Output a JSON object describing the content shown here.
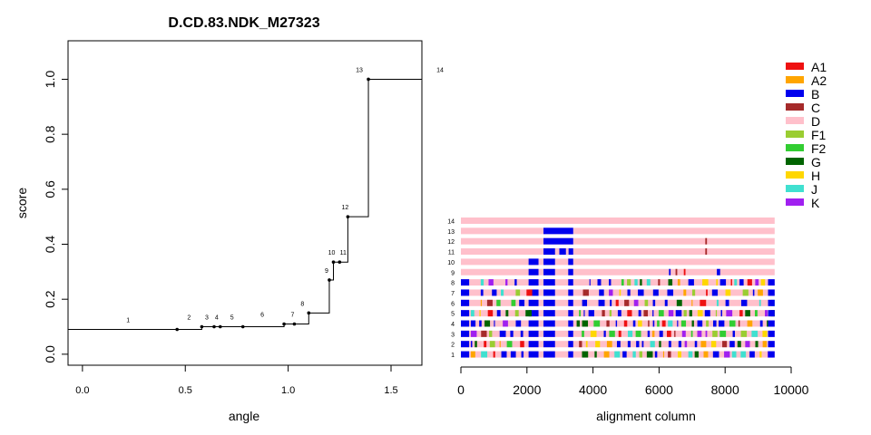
{
  "chart_data": [
    {
      "type": "line",
      "title": "D.CD.83.NDK_M27323",
      "xlabel": "angle",
      "ylabel": "score",
      "xlim": [
        -0.07,
        1.65
      ],
      "ylim": [
        -0.04,
        1.14
      ],
      "xticks": [
        "0.0",
        "0.5",
        "1.0",
        "1.5"
      ],
      "yticks": [
        "0.0",
        "0.2",
        "0.4",
        "0.6",
        "0.8",
        "1.0"
      ],
      "step_start": {
        "x": -0.07,
        "y": 0.09
      },
      "step_end_x": 1.65,
      "points": [
        {
          "label": "1",
          "x": 0.46,
          "y": 0.09
        },
        {
          "label": "2",
          "x": 0.58,
          "y": 0.1
        },
        {
          "label": "3",
          "x": 0.64,
          "y": 0.1
        },
        {
          "label": "4",
          "x": 0.67,
          "y": 0.1
        },
        {
          "label": "5",
          "x": 0.78,
          "y": 0.1
        },
        {
          "label": "6",
          "x": 0.98,
          "y": 0.11
        },
        {
          "label": "7",
          "x": 1.03,
          "y": 0.11
        },
        {
          "label": "8",
          "x": 1.1,
          "y": 0.15
        },
        {
          "label": "9",
          "x": 1.2,
          "y": 0.27
        },
        {
          "label": "10",
          "x": 1.22,
          "y": 0.335
        },
        {
          "label": "11",
          "x": 1.25,
          "y": 0.335
        },
        {
          "label": "12",
          "x": 1.29,
          "y": 0.5
        },
        {
          "label": "13",
          "x": 1.39,
          "y": 1.0
        },
        {
          "label": "14",
          "x": 1.65,
          "y": 1.0
        }
      ]
    },
    {
      "type": "heatmap",
      "xlabel": "alignment column",
      "xlim": [
        0,
        10000
      ],
      "xticks": [
        "0",
        "2000",
        "4000",
        "6000",
        "8000",
        "10000"
      ],
      "row_labels": [
        "1",
        "2",
        "3",
        "4",
        "5",
        "6",
        "7",
        "8",
        "9",
        "10",
        "11",
        "12",
        "13",
        "14"
      ],
      "alignment_length": 9500,
      "base_color": "#FFC0CB",
      "legend": [
        {
          "label": "A1",
          "color": "#EE1111"
        },
        {
          "label": "A2",
          "color": "#FFA500"
        },
        {
          "label": "B",
          "color": "#0000EE"
        },
        {
          "label": "C",
          "color": "#A52A2A"
        },
        {
          "label": "D",
          "color": "#FFC0CB"
        },
        {
          "label": "F1",
          "color": "#9ACD32"
        },
        {
          "label": "F2",
          "color": "#32CD32"
        },
        {
          "label": "G",
          "color": "#006400"
        },
        {
          "label": "H",
          "color": "#FFD700"
        },
        {
          "label": "J",
          "color": "#40E0D0"
        },
        {
          "label": "K",
          "color": "#A020F0"
        }
      ]
    }
  ]
}
